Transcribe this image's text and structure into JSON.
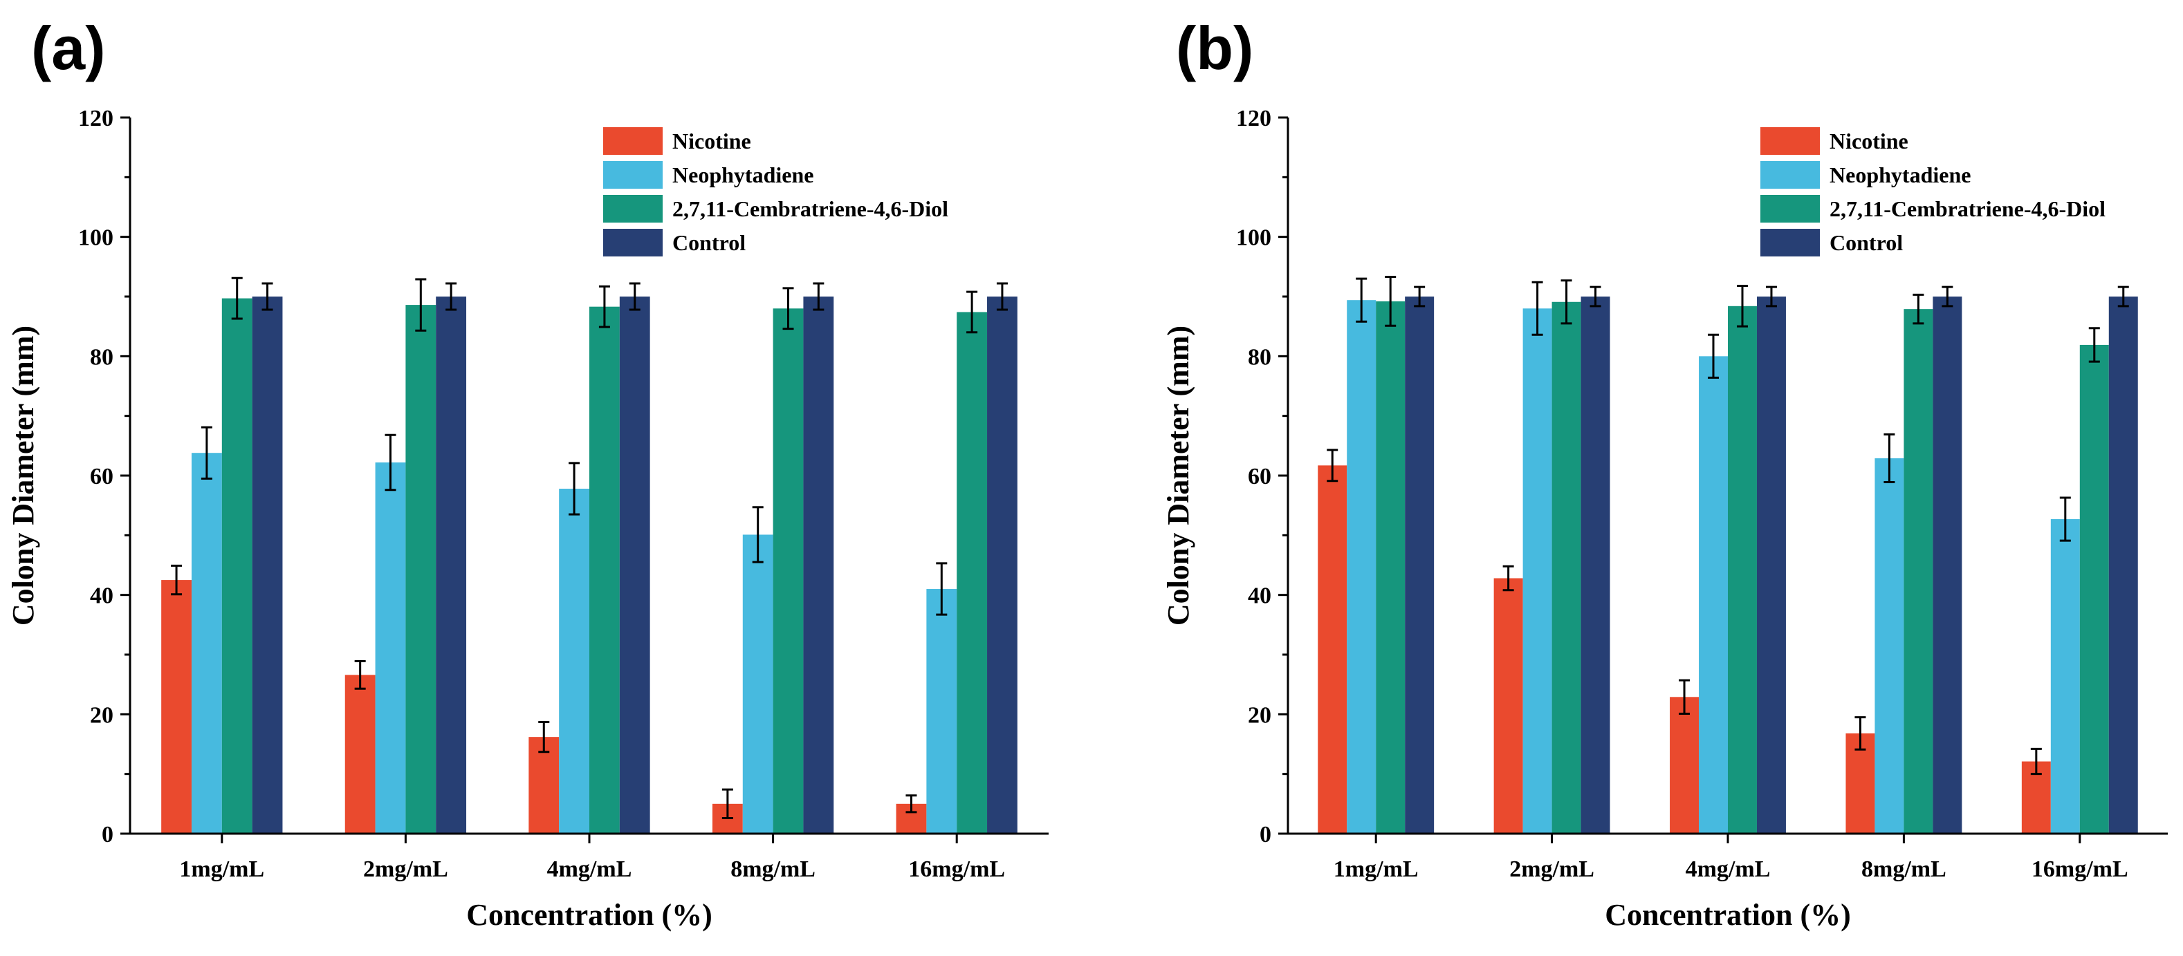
{
  "colors": {
    "Nicotine": "#EA4A2E",
    "Neophytadiene": "#47BADF",
    "2,7,11-Cembratriene-4,6-Diol": "#16967D",
    "Control": "#273F74"
  },
  "chart_data": [
    {
      "type": "bar",
      "panel_label": "(a)",
      "title": "",
      "xlabel": "Concentration (%)",
      "ylabel": "Colony Diameter (mm)",
      "ylim": [
        0,
        120
      ],
      "yticks": [
        0,
        20,
        40,
        60,
        80,
        100,
        120
      ],
      "categories": [
        "1mg/mL",
        "2mg/mL",
        "4mg/mL",
        "8mg/mL",
        "16mg/mL"
      ],
      "legend_position": "top-right",
      "series": [
        {
          "name": "Nicotine",
          "values": [
            42.5,
            26.6,
            16.2,
            5.0,
            5.0
          ],
          "errors": [
            2.4,
            2.3,
            2.5,
            2.4,
            1.4
          ]
        },
        {
          "name": "Neophytadiene",
          "values": [
            63.8,
            62.2,
            57.8,
            50.1,
            41.0
          ],
          "errors": [
            4.3,
            4.6,
            4.3,
            4.6,
            4.3
          ]
        },
        {
          "name": "2,7,11-Cembratriene-4,6-Diol",
          "values": [
            89.7,
            88.6,
            88.3,
            88.0,
            87.4
          ],
          "errors": [
            3.4,
            4.3,
            3.4,
            3.4,
            3.4
          ]
        },
        {
          "name": "Control",
          "values": [
            90.0,
            90.0,
            90.0,
            90.0,
            90.0
          ],
          "errors": [
            2.2,
            2.2,
            2.2,
            2.2,
            2.2
          ]
        }
      ]
    },
    {
      "type": "bar",
      "panel_label": "(b)",
      "title": "",
      "xlabel": "Concentration (%)",
      "ylabel": "Colony Diameter (mm)",
      "ylim": [
        0,
        120
      ],
      "yticks": [
        0,
        20,
        40,
        60,
        80,
        100,
        120
      ],
      "categories": [
        "1mg/mL",
        "2mg/mL",
        "4mg/mL",
        "8mg/mL",
        "16mg/mL"
      ],
      "legend_position": "top-right",
      "series": [
        {
          "name": "Nicotine",
          "values": [
            61.7,
            42.8,
            22.9,
            16.8,
            12.1
          ],
          "errors": [
            2.6,
            2.0,
            2.8,
            2.7,
            2.1
          ]
        },
        {
          "name": "Neophytadiene",
          "values": [
            89.4,
            88.0,
            80.0,
            62.9,
            52.7
          ],
          "errors": [
            3.6,
            4.4,
            3.6,
            4.0,
            3.6
          ]
        },
        {
          "name": "2,7,11-Cembratriene-4,6-Diol",
          "values": [
            89.2,
            89.1,
            88.4,
            87.9,
            81.9
          ],
          "errors": [
            4.1,
            3.6,
            3.4,
            2.4,
            2.8
          ]
        },
        {
          "name": "Control",
          "values": [
            90.0,
            90.0,
            90.0,
            90.0,
            90.0
          ],
          "errors": [
            1.6,
            1.6,
            1.6,
            1.6,
            1.6
          ]
        }
      ]
    }
  ]
}
